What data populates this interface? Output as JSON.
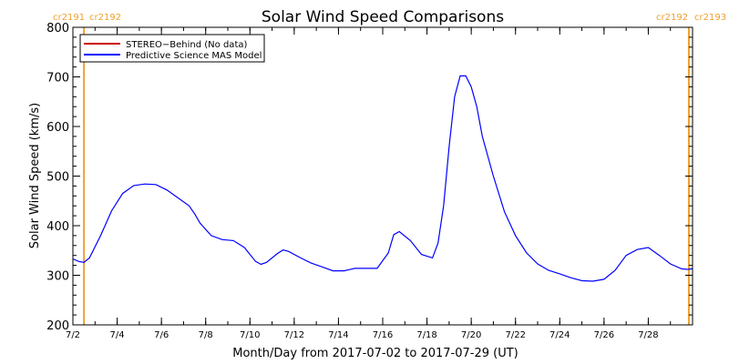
{
  "chart_data": {
    "type": "line",
    "title": "Solar Wind Speed Comparisons",
    "xlabel": "Month/Day from 2017-07-02 to 2017-07-29 (UT)",
    "ylabel": "Solar Wind Speed (km/s)",
    "ylim": [
      200,
      800
    ],
    "xlim": [
      "2017-07-02",
      "2017-07-30"
    ],
    "x_ticks": [
      "7/2",
      "7/4",
      "7/6",
      "7/8",
      "7/10",
      "7/12",
      "7/14",
      "7/16",
      "7/18",
      "7/20",
      "7/22",
      "7/24",
      "7/26",
      "7/28"
    ],
    "y_ticks": [
      200,
      300,
      400,
      500,
      600,
      700,
      800
    ],
    "legend": {
      "placement": "top-left",
      "entries": [
        {
          "label": "STEREO−Behind (No data)",
          "color": "#cc0000"
        },
        {
          "label": "Predictive Science MAS Model",
          "color": "#0000ff"
        }
      ]
    },
    "carrington_markers": [
      {
        "date": "2017-07-02T12:00",
        "color": "#f0a030",
        "labels": [
          "cr2191",
          "cr2192"
        ]
      },
      {
        "date": "2017-07-29T20:00",
        "color": "#f0a030",
        "labels": [
          "cr2192",
          "cr2193"
        ]
      }
    ],
    "series": [
      {
        "name": "Predictive Science MAS Model",
        "color": "#0000ff",
        "points": [
          [
            "2017-07-02T00:00",
            333
          ],
          [
            "2017-07-02T06:00",
            328
          ],
          [
            "2017-07-02T12:00",
            326
          ],
          [
            "2017-07-02T18:00",
            335
          ],
          [
            "2017-07-03T06:00",
            380
          ],
          [
            "2017-07-03T18:00",
            430
          ],
          [
            "2017-07-04T06:00",
            465
          ],
          [
            "2017-07-04T18:00",
            481
          ],
          [
            "2017-07-05T06:00",
            484
          ],
          [
            "2017-07-05T18:00",
            483
          ],
          [
            "2017-07-06T06:00",
            472
          ],
          [
            "2017-07-06T18:00",
            456
          ],
          [
            "2017-07-07T06:00",
            440
          ],
          [
            "2017-07-07T12:00",
            424
          ],
          [
            "2017-07-07T18:00",
            405
          ],
          [
            "2017-07-08T06:00",
            380
          ],
          [
            "2017-07-08T18:00",
            372
          ],
          [
            "2017-07-09T06:00",
            370
          ],
          [
            "2017-07-09T18:00",
            356
          ],
          [
            "2017-07-10T06:00",
            328
          ],
          [
            "2017-07-10T12:00",
            322
          ],
          [
            "2017-07-10T18:00",
            326
          ],
          [
            "2017-07-11T06:00",
            344
          ],
          [
            "2017-07-11T12:00",
            351
          ],
          [
            "2017-07-11T18:00",
            348
          ],
          [
            "2017-07-12T06:00",
            336
          ],
          [
            "2017-07-12T18:00",
            325
          ],
          [
            "2017-07-13T06:00",
            317
          ],
          [
            "2017-07-13T18:00",
            309
          ],
          [
            "2017-07-14T06:00",
            309
          ],
          [
            "2017-07-14T18:00",
            314
          ],
          [
            "2017-07-15T06:00",
            314
          ],
          [
            "2017-07-15T18:00",
            314
          ],
          [
            "2017-07-16T06:00",
            345
          ],
          [
            "2017-07-16T12:00",
            382
          ],
          [
            "2017-07-16T18:00",
            388
          ],
          [
            "2017-07-17T06:00",
            370
          ],
          [
            "2017-07-17T18:00",
            342
          ],
          [
            "2017-07-18T06:00",
            335
          ],
          [
            "2017-07-18T12:00",
            365
          ],
          [
            "2017-07-18T18:00",
            440
          ],
          [
            "2017-07-19T00:00",
            560
          ],
          [
            "2017-07-19T06:00",
            660
          ],
          [
            "2017-07-19T12:00",
            702
          ],
          [
            "2017-07-19T18:00",
            702
          ],
          [
            "2017-07-20T00:00",
            680
          ],
          [
            "2017-07-20T06:00",
            640
          ],
          [
            "2017-07-20T12:00",
            580
          ],
          [
            "2017-07-21T00:00",
            500
          ],
          [
            "2017-07-21T12:00",
            428
          ],
          [
            "2017-07-22T00:00",
            380
          ],
          [
            "2017-07-22T12:00",
            345
          ],
          [
            "2017-07-23T00:00",
            323
          ],
          [
            "2017-07-23T12:00",
            310
          ],
          [
            "2017-07-24T00:00",
            303
          ],
          [
            "2017-07-24T12:00",
            295
          ],
          [
            "2017-07-25T00:00",
            289
          ],
          [
            "2017-07-25T12:00",
            288
          ],
          [
            "2017-07-26T00:00",
            292
          ],
          [
            "2017-07-26T12:00",
            310
          ],
          [
            "2017-07-27T00:00",
            340
          ],
          [
            "2017-07-27T12:00",
            352
          ],
          [
            "2017-07-28T00:00",
            356
          ],
          [
            "2017-07-28T12:00",
            340
          ],
          [
            "2017-07-29T00:00",
            323
          ],
          [
            "2017-07-29T12:00",
            313
          ],
          [
            "2017-07-29T18:00",
            312
          ],
          [
            "2017-07-30T00:00",
            313
          ]
        ]
      }
    ]
  }
}
